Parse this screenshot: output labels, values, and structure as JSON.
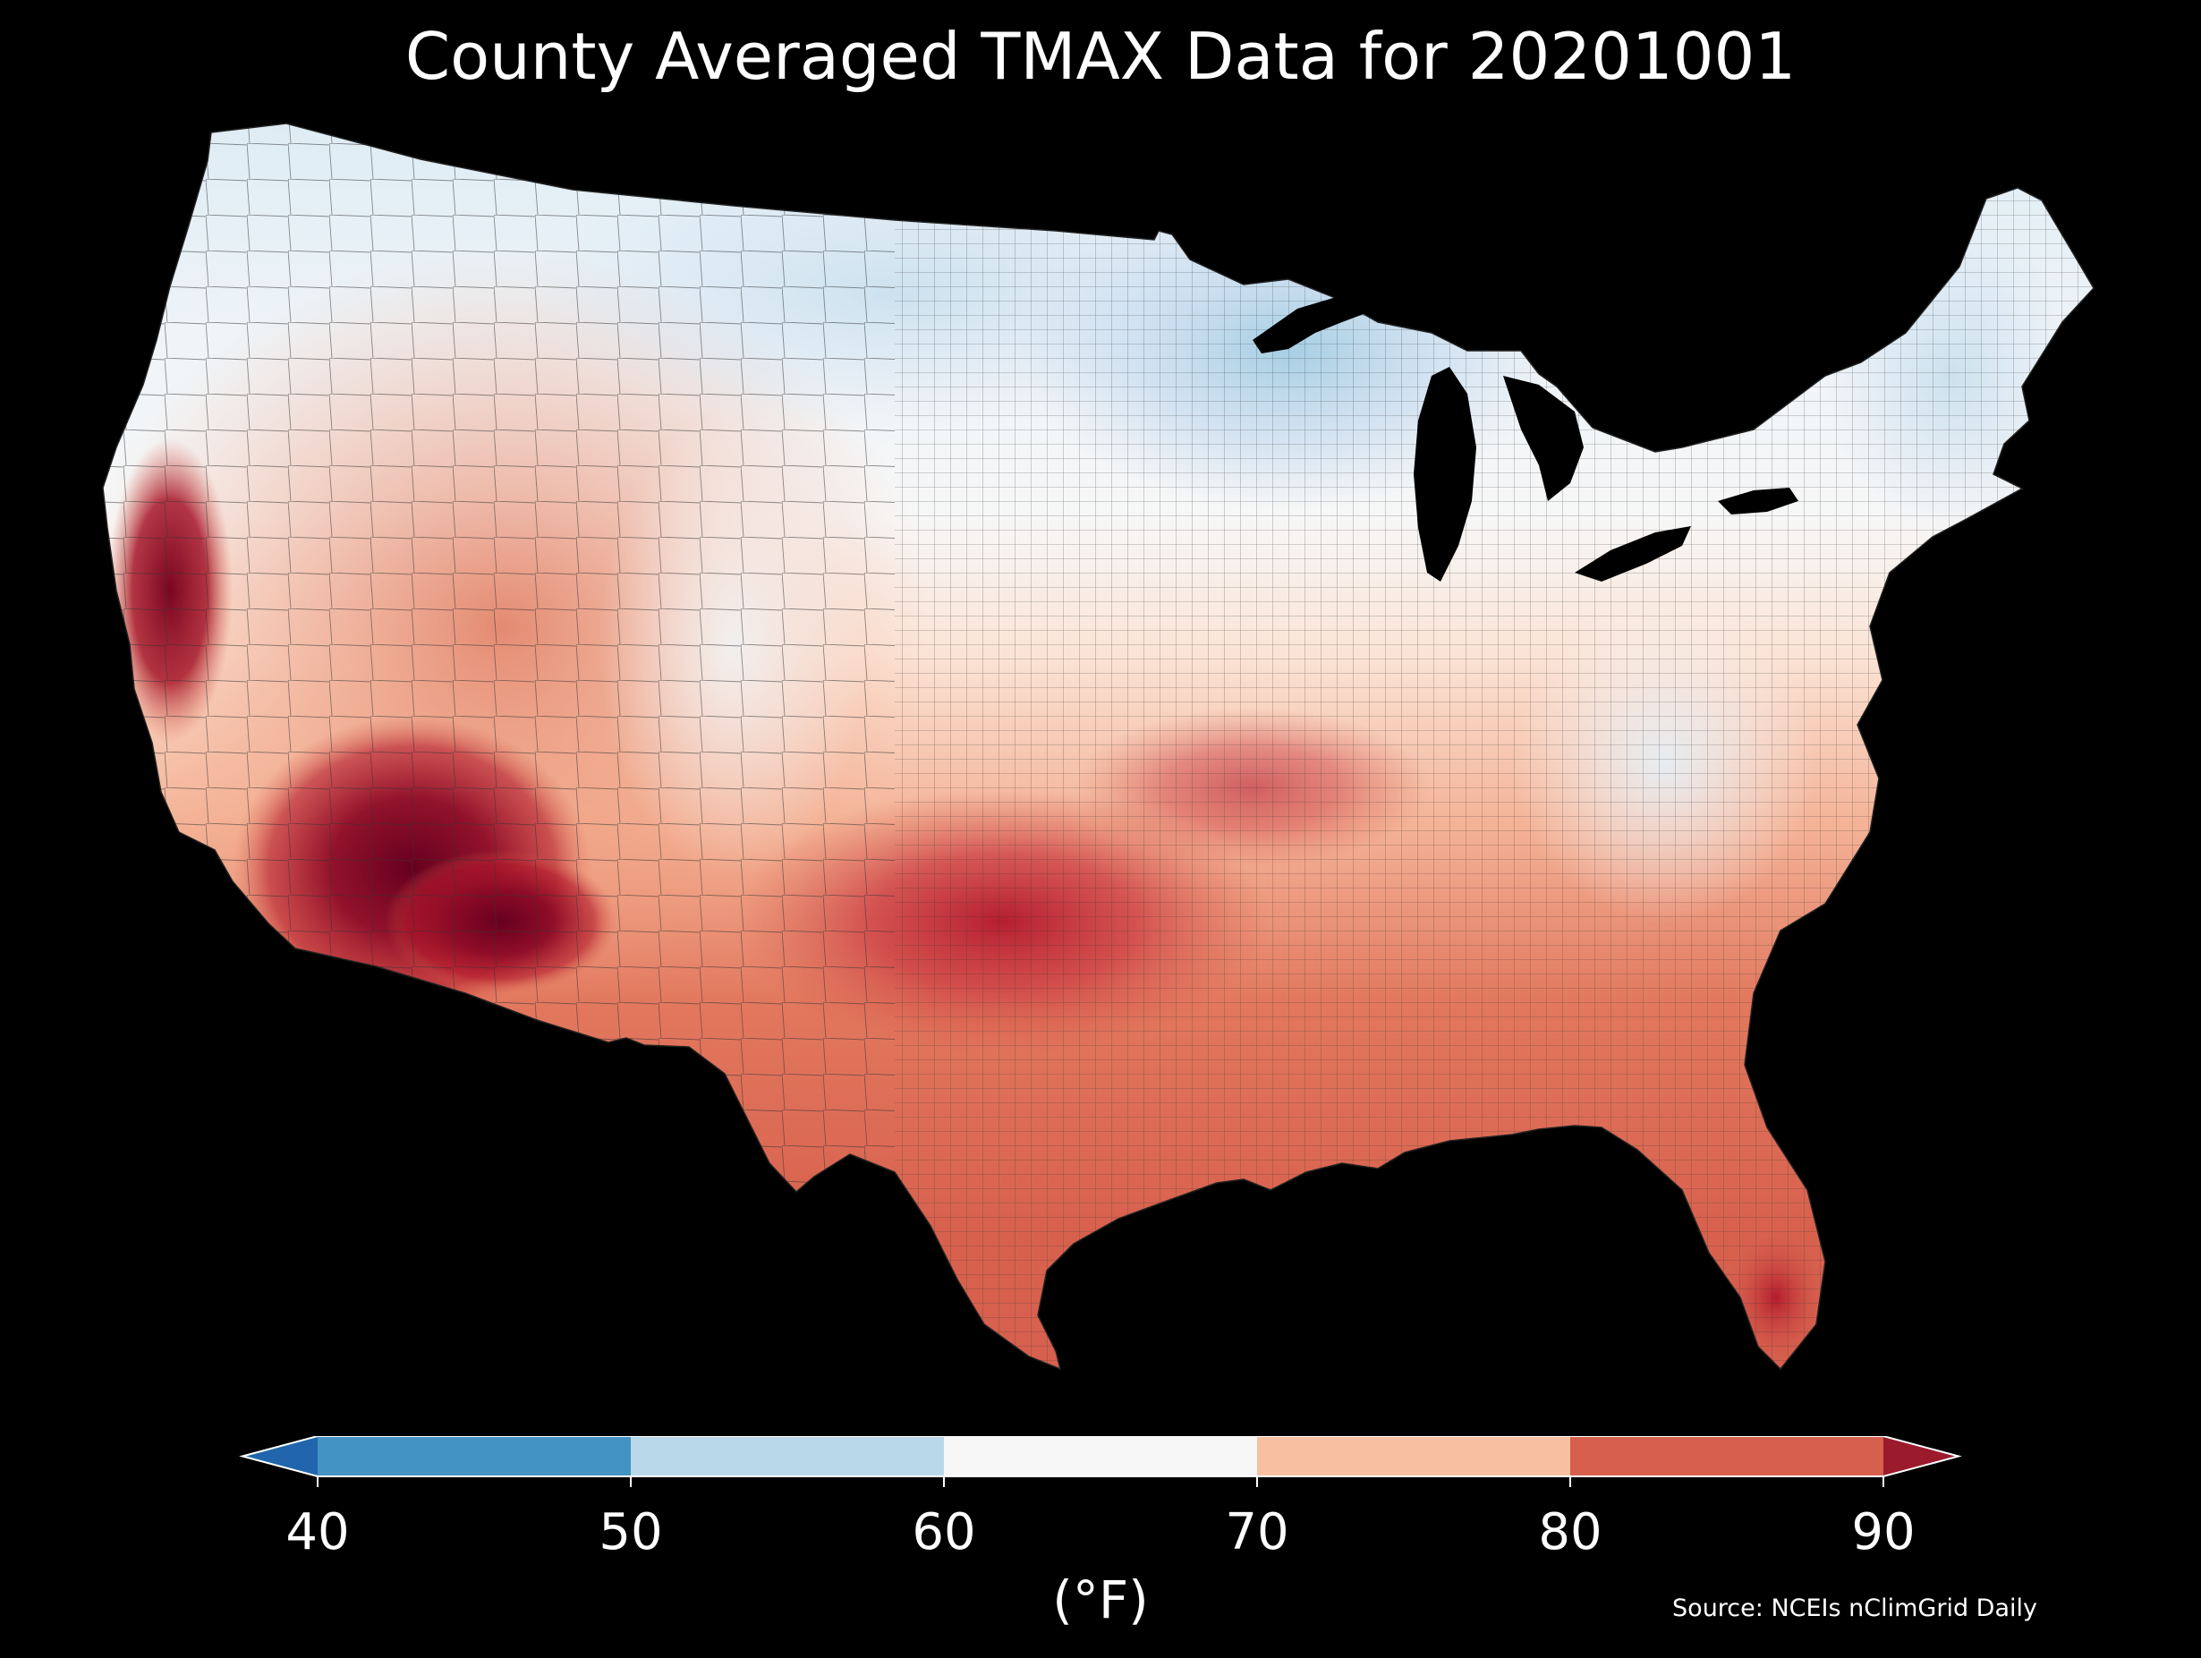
{
  "title": "County Averaged TMAX Data for 20201001",
  "source": "Source: NCEIs nClimGrid Daily",
  "colorbar": {
    "units": "(°F)",
    "ticks": [
      "40",
      "50",
      "60",
      "70",
      "80",
      "90"
    ],
    "bins": [
      {
        "range": "<40",
        "color": "#2166ac"
      },
      {
        "range": "40-50",
        "color": "#4393c3"
      },
      {
        "range": "50-60",
        "color": "#b9d9ea"
      },
      {
        "range": "60-70",
        "color": "#f7f7f7"
      },
      {
        "range": "70-80",
        "color": "#f8c0a1"
      },
      {
        "range": "80-90",
        "color": "#d6604d"
      },
      {
        "range": ">90",
        "color": "#9b1a2c"
      }
    ]
  },
  "map": {
    "region": "Contiguous United States",
    "variable": "TMAX",
    "date": "20201001",
    "background": "#000000",
    "border_color": "#333333"
  }
}
